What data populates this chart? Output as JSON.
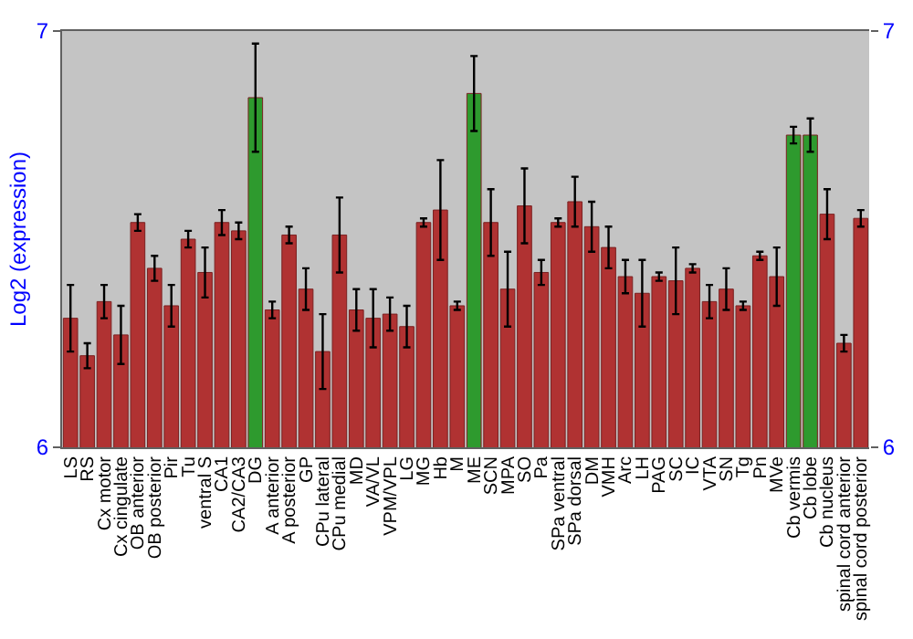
{
  "chart_data": {
    "type": "bar",
    "ylabel": "Log2 (expression)",
    "categories": [
      "LS",
      "RS",
      "Cx motor",
      "Cx cingulate",
      "OB anterior",
      "OB posterior",
      "Pir",
      "Tu",
      "ventral S",
      "CA1",
      "CA2/CA3",
      "DG",
      "A anterior",
      "A posterior",
      "GP",
      "CPu lateral",
      "CPu medial",
      "MD",
      "VA/VL",
      "VPM/VPL",
      "LG",
      "MG",
      "Hb",
      "M",
      "ME",
      "SCN",
      "MPA",
      "SO",
      "Pa",
      "SPa ventral",
      "SPa dorsal",
      "DM",
      "VMH",
      "Arc",
      "LH",
      "PAG",
      "SC",
      "IC",
      "VTA",
      "SN",
      "Tg",
      "Pn",
      "MVe",
      "Cb vermis",
      "Cb lobe",
      "Cb nucleus",
      "spinal cord anterior",
      "spinal cord posterior"
    ],
    "values": [
      6.31,
      6.22,
      6.35,
      6.27,
      6.54,
      6.43,
      6.34,
      6.5,
      6.42,
      6.54,
      6.52,
      6.84,
      6.33,
      6.51,
      6.38,
      6.23,
      6.51,
      6.33,
      6.31,
      6.32,
      6.29,
      6.54,
      6.57,
      6.34,
      6.85,
      6.54,
      6.38,
      6.58,
      6.42,
      6.54,
      6.59,
      6.53,
      6.48,
      6.41,
      6.37,
      6.41,
      6.4,
      6.43,
      6.35,
      6.38,
      6.34,
      6.46,
      6.41,
      6.75,
      6.75,
      6.56,
      6.25,
      6.55
    ],
    "errors": [
      0.08,
      0.03,
      0.04,
      0.07,
      0.02,
      0.03,
      0.05,
      0.02,
      0.06,
      0.03,
      0.02,
      0.13,
      0.02,
      0.02,
      0.05,
      0.09,
      0.09,
      0.05,
      0.07,
      0.04,
      0.05,
      0.01,
      0.12,
      0.01,
      0.09,
      0.08,
      0.09,
      0.09,
      0.03,
      0.01,
      0.06,
      0.06,
      0.05,
      0.04,
      0.08,
      0.01,
      0.08,
      0.01,
      0.04,
      0.05,
      0.01,
      0.01,
      0.07,
      0.02,
      0.04,
      0.06,
      0.02,
      0.02
    ],
    "colors": [
      "#b03232",
      "#b03232",
      "#b03232",
      "#b03232",
      "#b03232",
      "#b03232",
      "#b03232",
      "#b03232",
      "#b03232",
      "#b03232",
      "#b03232",
      "#2e9a2e",
      "#b03232",
      "#b03232",
      "#b03232",
      "#b03232",
      "#b03232",
      "#b03232",
      "#b03232",
      "#b03232",
      "#b03232",
      "#b03232",
      "#b03232",
      "#b03232",
      "#2e9a2e",
      "#b03232",
      "#b03232",
      "#b03232",
      "#b03232",
      "#b03232",
      "#b03232",
      "#b03232",
      "#b03232",
      "#b03232",
      "#b03232",
      "#b03232",
      "#b03232",
      "#b03232",
      "#b03232",
      "#b03232",
      "#b03232",
      "#b03232",
      "#b03232",
      "#2e9a2e",
      "#2e9a2e",
      "#b03232",
      "#b03232",
      "#b03232"
    ],
    "ylim": [
      6,
      7
    ],
    "yticks": [
      6,
      7
    ],
    "y2lim": [
      6,
      7
    ],
    "y2ticks": [
      6,
      7
    ],
    "grid": false
  }
}
